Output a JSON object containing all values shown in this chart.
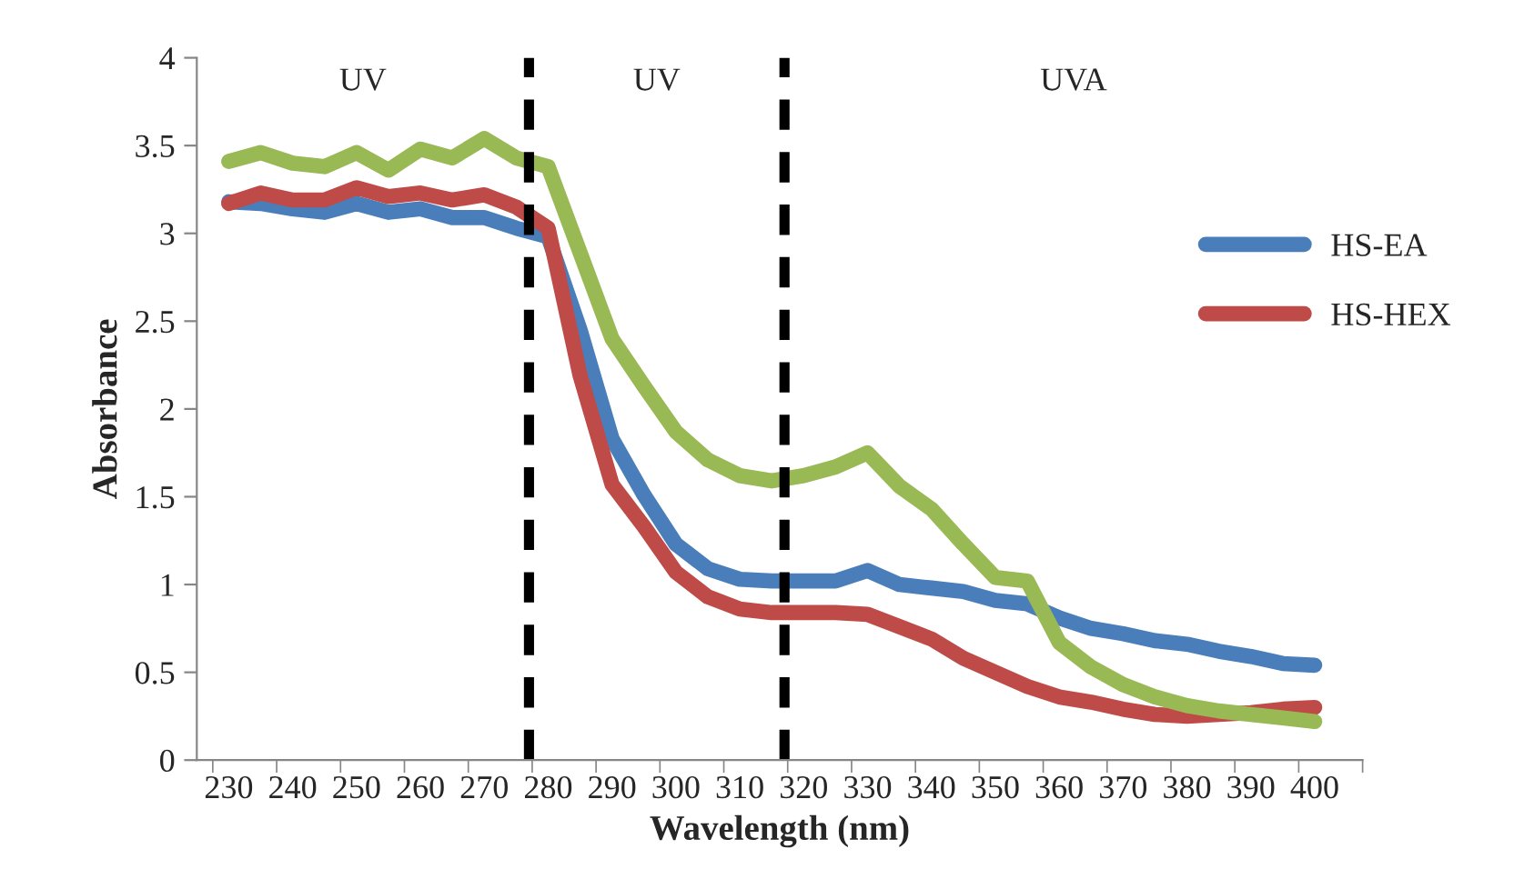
{
  "chart_data": {
    "type": "line",
    "xlabel": "Wavelength (nm)",
    "ylabel": "Absorbance",
    "x": [
      230,
      235,
      240,
      245,
      250,
      255,
      260,
      265,
      270,
      275,
      280,
      285,
      290,
      295,
      300,
      305,
      310,
      315,
      320,
      325,
      330,
      335,
      340,
      345,
      350,
      355,
      360,
      365,
      370,
      375,
      380,
      385,
      390,
      395,
      400
    ],
    "series": [
      {
        "name": "HS-EA",
        "color": "#4a7ebb",
        "values": [
          3.18,
          3.17,
          3.14,
          3.12,
          3.17,
          3.12,
          3.14,
          3.09,
          3.09,
          3.03,
          2.98,
          2.45,
          1.83,
          1.51,
          1.23,
          1.09,
          1.03,
          1.02,
          1.02,
          1.02,
          1.08,
          1.0,
          0.98,
          0.96,
          0.91,
          0.89,
          0.81,
          0.75,
          0.72,
          0.68,
          0.66,
          0.62,
          0.59,
          0.55,
          0.54
        ]
      },
      {
        "name": "HS-HEX",
        "color": "#be4b48",
        "values": [
          3.17,
          3.23,
          3.19,
          3.19,
          3.26,
          3.21,
          3.23,
          3.19,
          3.22,
          3.15,
          3.03,
          2.19,
          1.57,
          1.33,
          1.07,
          0.93,
          0.86,
          0.84,
          0.84,
          0.84,
          0.83,
          0.76,
          0.69,
          0.58,
          0.5,
          0.42,
          0.36,
          0.33,
          0.29,
          0.26,
          0.25,
          0.26,
          0.27,
          0.29,
          0.3
        ]
      },
      {
        "color": "#98b954",
        "values": [
          3.41,
          3.46,
          3.4,
          3.38,
          3.46,
          3.36,
          3.48,
          3.43,
          3.54,
          3.43,
          3.38,
          2.89,
          2.4,
          2.13,
          1.87,
          1.71,
          1.62,
          1.59,
          1.62,
          1.67,
          1.75,
          1.56,
          1.43,
          1.23,
          1.04,
          1.02,
          0.67,
          0.53,
          0.43,
          0.36,
          0.31,
          0.28,
          0.26,
          0.24,
          0.22
        ]
      }
    ],
    "xlim": [
      225,
      407.5
    ],
    "xticks": [
      230,
      240,
      250,
      260,
      270,
      280,
      290,
      300,
      310,
      320,
      330,
      340,
      350,
      360,
      370,
      380,
      390,
      400,
      {
        "value": 227.5,
        "label": null
      },
      {
        "value": 237.5,
        "label": null
      },
      {
        "value": 247.5,
        "label": null
      },
      {
        "value": 257.5,
        "label": null
      },
      {
        "value": 267.5,
        "label": null
      },
      {
        "value": 277.5,
        "label": null
      },
      {
        "value": 287.5,
        "label": null
      },
      {
        "value": 297.5,
        "label": null
      },
      {
        "value": 307.5,
        "label": null
      },
      {
        "value": 317.5,
        "label": null
      },
      {
        "value": 327.5,
        "label": null
      },
      {
        "value": 337.5,
        "label": null
      },
      {
        "value": 347.5,
        "label": null
      },
      {
        "value": 357.5,
        "label": null
      },
      {
        "value": 367.5,
        "label": null
      },
      {
        "value": 377.5,
        "label": null
      },
      {
        "value": 387.5,
        "label": null
      },
      {
        "value": 397.5,
        "label": null
      },
      {
        "value": 407.5,
        "label": null
      }
    ],
    "ylim": [
      0,
      4
    ],
    "yticks": [
      0,
      0.5,
      1,
      1.5,
      2,
      2.5,
      3,
      3.5,
      4
    ],
    "ref_lines": [
      {
        "axis": "x",
        "value": 277,
        "color": "#000000",
        "line_style": "dashed"
      },
      {
        "axis": "x",
        "value": 317,
        "color": "#000000",
        "line_style": "dashed"
      }
    ],
    "annotations": [
      "UV",
      "UV",
      "UVA"
    ],
    "grid": false,
    "legend": "right",
    "line_style": "solid",
    "marker": "none"
  }
}
